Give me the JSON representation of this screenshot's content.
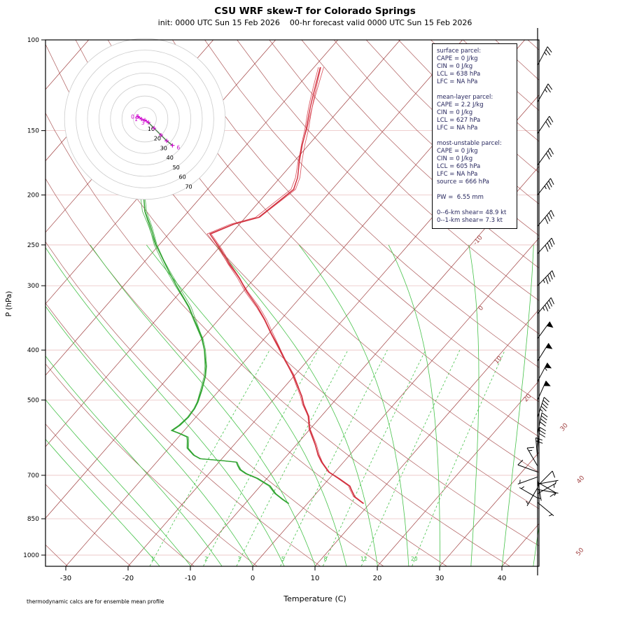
{
  "header": {
    "title": "CSU WRF skew-T for Colorado Springs",
    "subtitle": "init: 0000 UTC Sun 15 Feb 2026    00-hr forecast valid 0000 UTC Sun 15 Feb 2026"
  },
  "footer": {
    "note": "thermodynamic calcs are for ensemble mean profile"
  },
  "axes": {
    "x_label": "Temperature (C)",
    "y_label": "P (hPa)",
    "x_ticks": [
      -30,
      -20,
      -10,
      0,
      10,
      20,
      30,
      40
    ],
    "y_ticks": [
      100,
      150,
      200,
      250,
      300,
      400,
      500,
      700,
      850,
      1000
    ],
    "isotherm_labels": [
      -10,
      0,
      10,
      20,
      30,
      40,
      50
    ]
  },
  "info_box": {
    "lines": [
      "surface parcel:",
      "CAPE = 0 J/kg",
      "CIN = 0 J/kg",
      "LCL = 638 hPa",
      "LFC = NA hPa",
      "",
      "mean-layer parcel:",
      "CAPE = 2.2 J/kg",
      "CIN = 0 J/kg",
      "LCL = 627 hPa",
      "LFC = NA hPa",
      "",
      "most-unstable parcel:",
      "CAPE = 0 J/kg",
      "CIN = 0 J/kg",
      "LCL = 605 hPa",
      "LFC = NA hPa",
      "source = 666 hPa",
      "",
      "PW =  6.55 mm",
      "",
      "0--6-km shear= 48.9 kt",
      "0--1-km shear= 7.3 kt"
    ]
  },
  "chart_data": {
    "type": "skewt-logp",
    "pressure_range": [
      100,
      1050
    ],
    "temperature_axis_range": [
      -40,
      45
    ],
    "mixing_ratio_values": [
      1,
      2,
      3,
      5,
      8,
      12,
      20
    ],
    "temperature_profile": [
      [
        794,
        9
      ],
      [
        770,
        6.6
      ],
      [
        745,
        5
      ],
      [
        734,
        4.3
      ],
      [
        710,
        1.5
      ],
      [
        690,
        -1
      ],
      [
        660,
        -3.5
      ],
      [
        640,
        -5
      ],
      [
        610,
        -7
      ],
      [
        570,
        -10
      ],
      [
        538,
        -12
      ],
      [
        510,
        -14.5
      ],
      [
        491,
        -16
      ],
      [
        470,
        -18
      ],
      [
        447,
        -20.3
      ],
      [
        420,
        -23.5
      ],
      [
        395,
        -26.5
      ],
      [
        372,
        -29.5
      ],
      [
        349,
        -32.6
      ],
      [
        330,
        -35.5
      ],
      [
        308,
        -39.4
      ],
      [
        290,
        -42.5
      ],
      [
        272,
        -46.1
      ],
      [
        255,
        -49.5
      ],
      [
        244,
        -52
      ],
      [
        238,
        -53.4
      ],
      [
        228,
        -51
      ],
      [
        221,
        -47.9
      ],
      [
        207,
        -47
      ],
      [
        195,
        -46.2
      ],
      [
        185,
        -47.2
      ],
      [
        172,
        -49.2
      ],
      [
        160,
        -51
      ],
      [
        149,
        -52.6
      ],
      [
        138,
        -54.5
      ],
      [
        130,
        -55.9
      ],
      [
        121,
        -57.5
      ],
      [
        113,
        -59
      ]
    ],
    "dewpoint_profile": [
      [
        794,
        -3
      ],
      [
        780,
        -4.5
      ],
      [
        760,
        -6.5
      ],
      [
        734,
        -8.5
      ],
      [
        710,
        -11.5
      ],
      [
        695,
        -14
      ],
      [
        683,
        -15.5
      ],
      [
        670,
        -16.5
      ],
      [
        660,
        -17.2
      ],
      [
        655,
        -20
      ],
      [
        650,
        -23.5
      ],
      [
        640,
        -25
      ],
      [
        620,
        -27
      ],
      [
        600,
        -28
      ],
      [
        590,
        -28.6
      ],
      [
        580,
        -30.5
      ],
      [
        573,
        -32
      ],
      [
        560,
        -31.5
      ],
      [
        540,
        -31.2
      ],
      [
        520,
        -31.4
      ],
      [
        505,
        -31.8
      ],
      [
        480,
        -32.8
      ],
      [
        450,
        -34.2
      ],
      [
        430,
        -35.5
      ],
      [
        400,
        -38
      ],
      [
        380,
        -40
      ],
      [
        350,
        -43.8
      ],
      [
        330,
        -46.5
      ],
      [
        300,
        -51.5
      ],
      [
        280,
        -55
      ],
      [
        250,
        -60.5
      ],
      [
        230,
        -64
      ],
      [
        215,
        -67
      ],
      [
        200,
        -69.5
      ]
    ],
    "ensemble_members": 4,
    "wind_barbs": [
      [
        112,
        28,
        25
      ],
      [
        132,
        30,
        25
      ],
      [
        152,
        34,
        30
      ],
      [
        175,
        36,
        30
      ],
      [
        200,
        38,
        35
      ],
      [
        230,
        40,
        40
      ],
      [
        260,
        42,
        40
      ],
      [
        300,
        44,
        45
      ],
      [
        340,
        40,
        45
      ],
      [
        380,
        36,
        50
      ],
      [
        420,
        32,
        50
      ],
      [
        460,
        28,
        55
      ],
      [
        500,
        24,
        50
      ],
      [
        540,
        18,
        45
      ],
      [
        580,
        12,
        40
      ],
      [
        620,
        6,
        30
      ],
      [
        650,
        -5,
        20
      ],
      [
        672,
        -30,
        15
      ],
      [
        690,
        -70,
        10
      ],
      [
        705,
        -110,
        5
      ],
      [
        715,
        170,
        5
      ],
      [
        722,
        120,
        10
      ],
      [
        728,
        80,
        5
      ],
      [
        734,
        45,
        10
      ],
      [
        740,
        -150,
        5
      ],
      [
        746,
        100,
        5
      ],
      [
        760,
        60,
        5
      ],
      [
        775,
        -60,
        5
      ],
      [
        790,
        130,
        5
      ]
    ],
    "hodograph": {
      "ring_step_kt": 10,
      "rings": 7,
      "ring_labels": [
        "10",
        "20",
        "30",
        "40",
        "50",
        "60",
        "70"
      ],
      "trace_uv_kt": [
        [
          -6,
          -2
        ],
        [
          -3,
          0
        ],
        [
          0,
          1
        ],
        [
          3,
          3
        ],
        [
          8,
          8
        ],
        [
          14,
          14
        ],
        [
          19,
          19
        ],
        [
          24,
          23
        ]
      ],
      "altitude_labels": [
        {
          "text": "0.5",
          "at": 0
        },
        {
          "text": "1",
          "at": 1
        },
        {
          "text": "3",
          "at": 3
        },
        {
          "text": "6",
          "at": 7
        }
      ]
    },
    "colors": {
      "isotherm": "#a04040",
      "dry_adiabat": "#a04040",
      "pressure_grid": "#edc9c9",
      "moist_adiabat": "#46c24a",
      "mixing_ratio": "#46c24a",
      "temperature": "#d2303e",
      "dewpoint": "#2fa32f",
      "hodograph_ring": "#cccccc",
      "hodograph_trace": "#cc00cc",
      "barbs": "#000000",
      "info_text": "#27275e"
    }
  }
}
